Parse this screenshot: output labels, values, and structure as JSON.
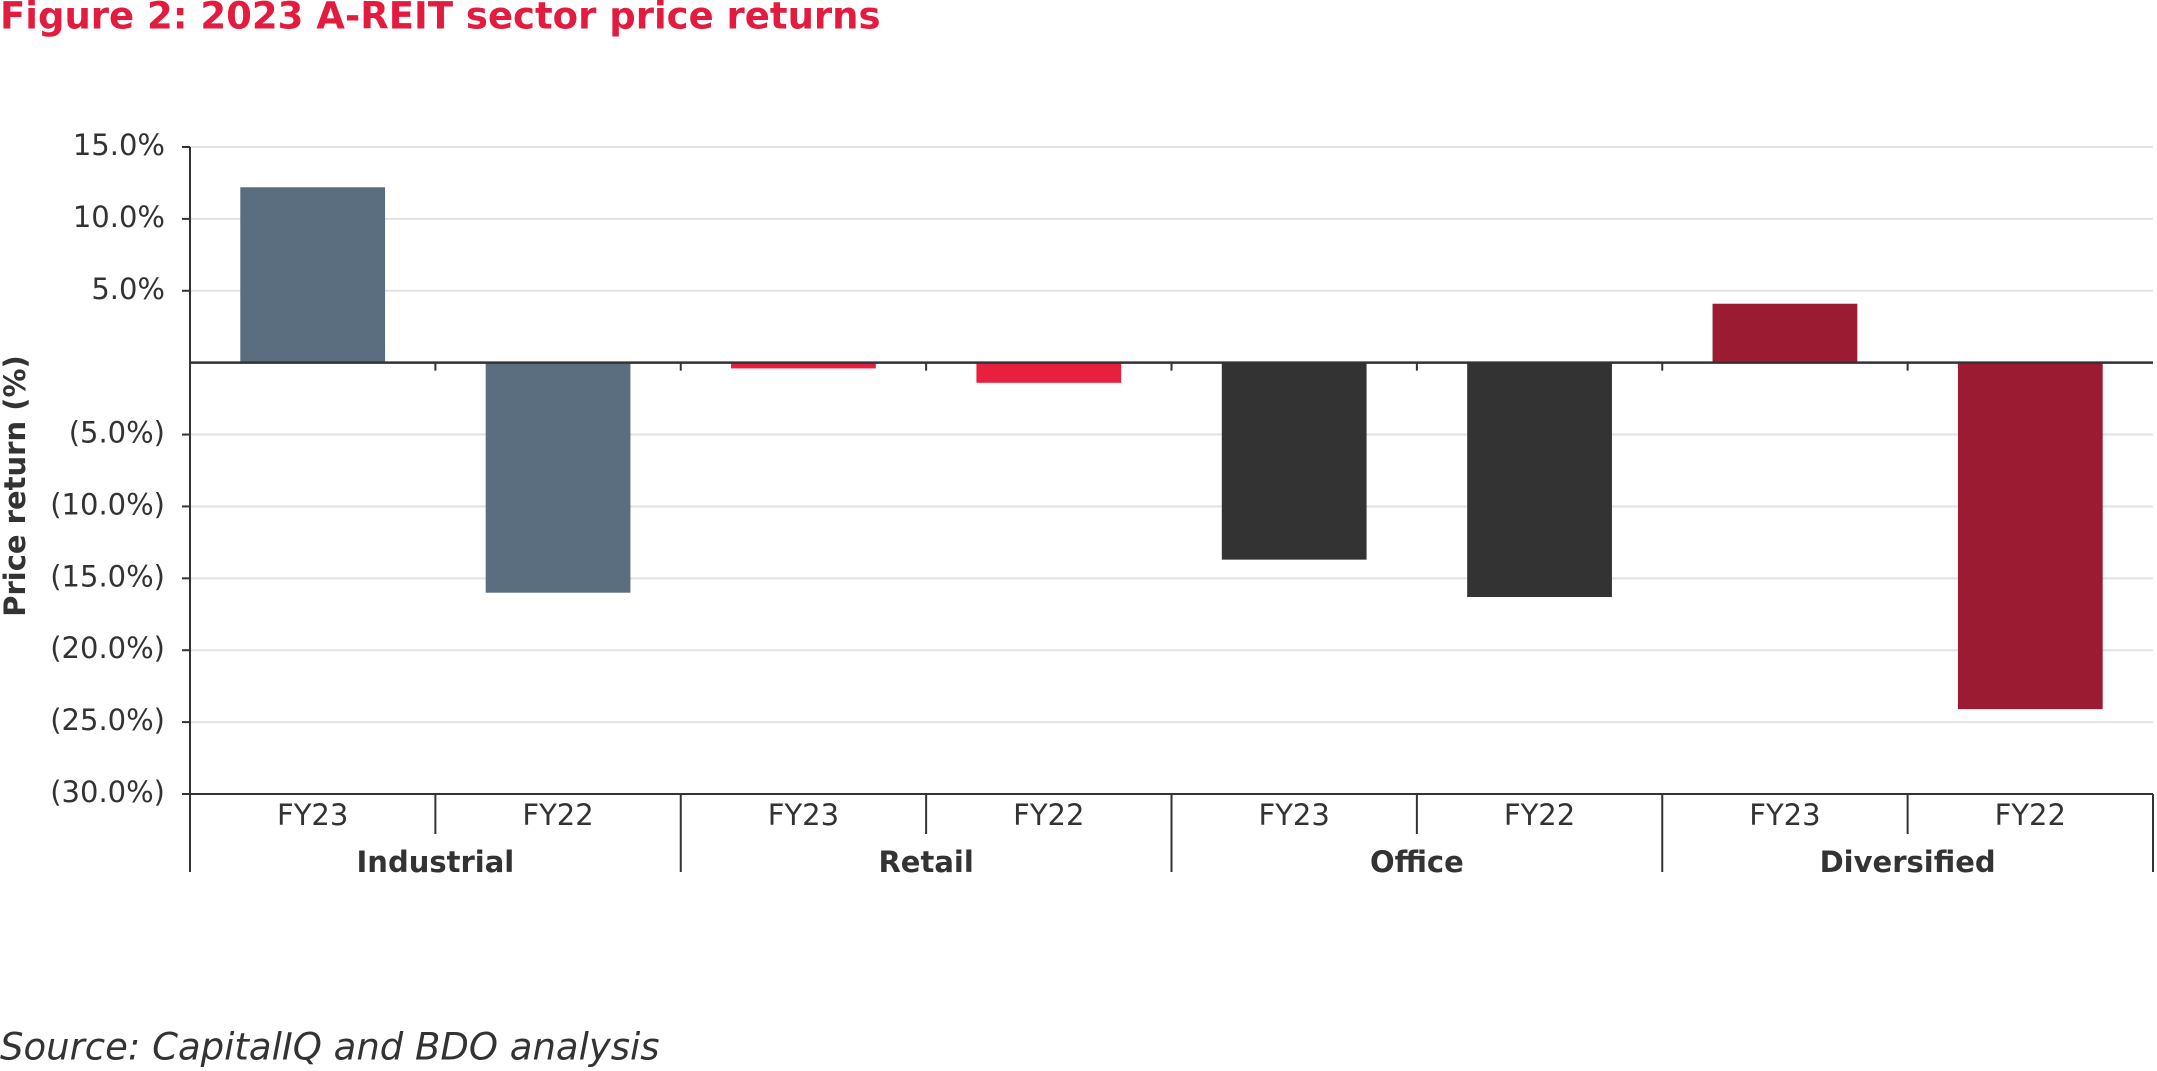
{
  "chart_data": {
    "type": "grouped-bar",
    "title": "Figure 2: 2023 A-REIT sector price returns",
    "y_label": "Price return (%)",
    "source": "Source: CapitalIQ and BDO analysis",
    "groups": [
      {
        "name": "Industrial",
        "color": "#5b6e7f",
        "categories": [
          "FY23",
          "FY22"
        ],
        "values": [
          12.2,
          -16.0
        ]
      },
      {
        "name": "Retail",
        "color": "#e8203f",
        "categories": [
          "FY23",
          "FY22"
        ],
        "values": [
          -0.4,
          -1.4
        ]
      },
      {
        "name": "Office",
        "color": "#333333",
        "categories": [
          "FY23",
          "FY22"
        ],
        "values": [
          -13.7,
          -16.3
        ]
      },
      {
        "name": "Diversified",
        "color": "#9a1b32",
        "categories": [
          "FY23",
          "FY22"
        ],
        "values": [
          4.1,
          -24.1
        ]
      }
    ],
    "ylim": [
      -30,
      15
    ],
    "yticks": [
      {
        "value": 15,
        "label": "15.0%"
      },
      {
        "value": 10,
        "label": "10.0%"
      },
      {
        "value": 5,
        "label": "5.0%"
      },
      {
        "value": -5,
        "label": "(5.0%)"
      },
      {
        "value": -10,
        "label": "(10.0%)"
      },
      {
        "value": -15,
        "label": "(15.0%)"
      },
      {
        "value": -20,
        "label": "(20.0%)"
      },
      {
        "value": -25,
        "label": "(25.0%)"
      },
      {
        "value": -30,
        "label": "(30.0%)"
      }
    ],
    "grid": true
  }
}
